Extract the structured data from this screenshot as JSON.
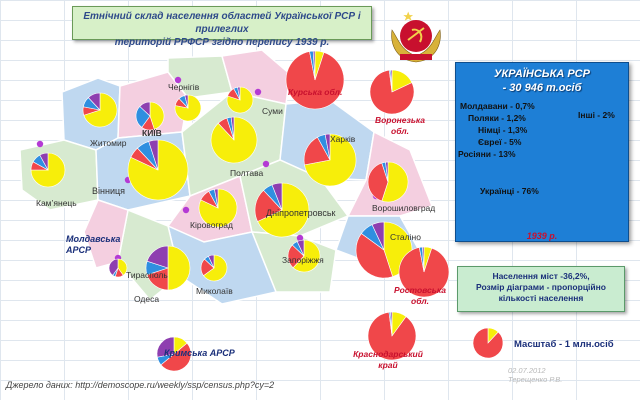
{
  "title_line1": "Етнічний склад населення областей Української  РСР і прилеглих",
  "title_line2": "територій РРФСР згідно перепису 1939 р.",
  "regions": [
    {
      "name": "Чернігів",
      "style": "normal",
      "slices": [
        0.78,
        0.1,
        0.08,
        0.04
      ]
    },
    {
      "name": "Суми",
      "style": "normal",
      "slices": [
        0.8,
        0.12,
        0.05,
        0.03
      ]
    },
    {
      "name": "КИЇВ",
      "style": "normal",
      "slices": [
        0.45,
        0.15,
        0.27,
        0.13
      ]
    },
    {
      "name": "Житомир",
      "style": "normal",
      "slices": [
        0.7,
        0.08,
        0.1,
        0.12
      ]
    },
    {
      "name": "Вінниця",
      "style": "normal",
      "slices": [
        0.82,
        0.06,
        0.07,
        0.05
      ]
    },
    {
      "name": "Кам’янець",
      "style": "normal",
      "slices": [
        0.75,
        0.08,
        0.09,
        0.08
      ]
    },
    {
      "name": "Полтава",
      "style": "normal",
      "slices": [
        0.88,
        0.07,
        0.03,
        0.02
      ]
    },
    {
      "name": "Харків",
      "style": "normal",
      "slices": [
        0.72,
        0.2,
        0.05,
        0.03
      ]
    },
    {
      "name": "Кіровоград",
      "style": "normal",
      "slices": [
        0.82,
        0.1,
        0.05,
        0.03
      ]
    },
    {
      "name": "Дніпропетровськ",
      "style": "normal",
      "slices": [
        0.68,
        0.2,
        0.06,
        0.06
      ]
    },
    {
      "name": "Ворошиловград",
      "style": "normal",
      "slices": [
        0.55,
        0.4,
        0.03,
        0.02
      ]
    },
    {
      "name": "Сталіно",
      "style": "normal",
      "slices": [
        0.45,
        0.4,
        0.08,
        0.07
      ]
    },
    {
      "name": "Запоріжжя",
      "style": "normal",
      "slices": [
        0.62,
        0.25,
        0.06,
        0.07
      ]
    },
    {
      "name": "Миколаїв",
      "style": "normal",
      "slices": [
        0.65,
        0.22,
        0.06,
        0.07
      ]
    },
    {
      "name": "Одеса",
      "style": "normal",
      "slices": [
        0.5,
        0.2,
        0.1,
        0.2
      ]
    },
    {
      "name": "Тирасполь",
      "style": "normal",
      "slices": [
        0.4,
        0.15,
        0.05,
        0.4
      ]
    },
    {
      "name": "Молдавська АРСР",
      "style": "blue",
      "slices": []
    },
    {
      "name": "Курська обл.",
      "style": "red",
      "slices": [
        0.05,
        0.92,
        0.02,
        0.01
      ]
    },
    {
      "name": "Воронезька обл.",
      "style": "red",
      "slices": [
        0.18,
        0.8,
        0.01,
        0.01
      ]
    },
    {
      "name": "Ростовська обл.",
      "style": "red",
      "slices": [
        0.05,
        0.92,
        0.02,
        0.01
      ]
    },
    {
      "name": "Краснодарський край",
      "style": "red",
      "slices": [
        0.1,
        0.88,
        0.01,
        0.01
      ]
    },
    {
      "name": "Кримська АРСР",
      "style": "blue",
      "slices": [
        0.14,
        0.5,
        0.08,
        0.28
      ]
    }
  ],
  "ussr": {
    "title": "УКРАЇНСЬКА РСР",
    "subtitle": "- 30 946 т.осіб",
    "year": "1939 р.",
    "legend": [
      {
        "label": "Українці - 76%",
        "value": 76,
        "color": "#f7ee0a"
      },
      {
        "label": "Росіяни - 13%",
        "value": 13,
        "color": "#f0474a"
      },
      {
        "label": "Євреї - 5%",
        "value": 5,
        "color": "#2f8fe0"
      },
      {
        "label": "Німці - 1,3%",
        "value": 1.3,
        "color": "#30c0c8"
      },
      {
        "label": "Поляки - 1,2%",
        "value": 1.2,
        "color": "#8e3fb0"
      },
      {
        "label": "Молдавани - 0,7%",
        "value": 0.7,
        "color": "#2a3f9a"
      },
      {
        "label": "Інші - 2%",
        "value": 2,
        "color": "#c8102e"
      }
    ]
  },
  "note": {
    "line1": "Населення міст -36,2%,",
    "line2": "Розмір діаграми - пропорційно",
    "line3": "кількості  населення"
  },
  "scale_label": "Масштаб - 1 млн.осіб",
  "source": "Джерело даних: http://demoscope.ru/weekly/ssp/census.php?cy=2",
  "author_date": "02.07.2012",
  "author_name": "Терещенко Р.В.",
  "colors": {
    "ukrainians": "#f7ee0a",
    "russians": "#f0474a",
    "jews": "#2f8fe0",
    "others": "#8e3fb0",
    "city_dot": "#b43ad4"
  }
}
